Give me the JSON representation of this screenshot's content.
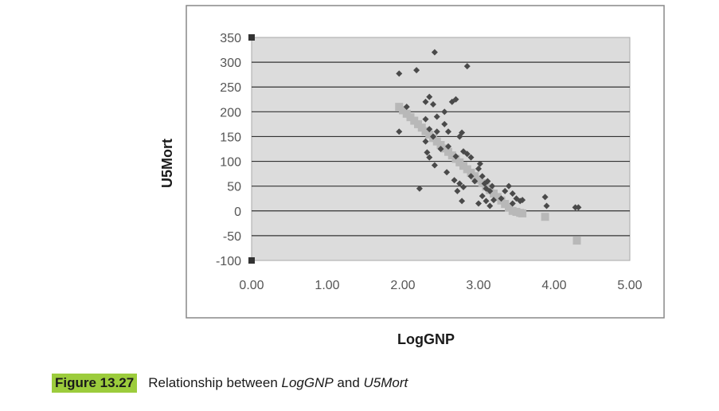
{
  "chart_data": {
    "type": "scatter",
    "xlabel": "LogGNP",
    "ylabel": "U5Mort",
    "xlim": [
      0,
      5
    ],
    "ylim": [
      -100,
      350
    ],
    "x_ticks": [
      "0.00",
      "1.00",
      "2.00",
      "3.00",
      "4.00",
      "5.00"
    ],
    "y_ticks": [
      "350",
      "300",
      "250",
      "200",
      "150",
      "100",
      "50",
      "0",
      "-50",
      "-100"
    ],
    "grid": true,
    "legend": "none",
    "series": [
      {
        "marker": "diamond",
        "color": "#4a4a4a",
        "points": [
          [
            1.95,
            277
          ],
          [
            1.95,
            160
          ],
          [
            2.18,
            284
          ],
          [
            2.22,
            45
          ],
          [
            2.42,
            320
          ],
          [
            2.85,
            292
          ],
          [
            2.05,
            210
          ],
          [
            2.3,
            220
          ],
          [
            2.35,
            230
          ],
          [
            2.4,
            215
          ],
          [
            2.45,
            190
          ],
          [
            2.55,
            200
          ],
          [
            2.65,
            220
          ],
          [
            2.7,
            225
          ],
          [
            2.3,
            185
          ],
          [
            2.35,
            165
          ],
          [
            2.4,
            150
          ],
          [
            2.45,
            160
          ],
          [
            2.55,
            175
          ],
          [
            2.6,
            160
          ],
          [
            2.75,
            150
          ],
          [
            2.78,
            158
          ],
          [
            2.3,
            140
          ],
          [
            2.32,
            118
          ],
          [
            2.35,
            108
          ],
          [
            2.42,
            92
          ],
          [
            2.5,
            125
          ],
          [
            2.6,
            130
          ],
          [
            2.7,
            110
          ],
          [
            2.8,
            120
          ],
          [
            2.85,
            115
          ],
          [
            2.9,
            108
          ],
          [
            2.58,
            78
          ],
          [
            2.68,
            62
          ],
          [
            2.75,
            55
          ],
          [
            2.8,
            48
          ],
          [
            2.72,
            40
          ],
          [
            2.78,
            20
          ],
          [
            2.9,
            70
          ],
          [
            2.95,
            60
          ],
          [
            3.0,
            85
          ],
          [
            3.02,
            95
          ],
          [
            3.05,
            70
          ],
          [
            3.08,
            55
          ],
          [
            3.1,
            45
          ],
          [
            3.12,
            60
          ],
          [
            3.15,
            40
          ],
          [
            3.18,
            50
          ],
          [
            3.05,
            30
          ],
          [
            3.1,
            20
          ],
          [
            3.15,
            10
          ],
          [
            3.0,
            15
          ],
          [
            3.2,
            22
          ],
          [
            3.3,
            25
          ],
          [
            3.35,
            40
          ],
          [
            3.4,
            50
          ],
          [
            3.45,
            35
          ],
          [
            3.5,
            25
          ],
          [
            3.45,
            15
          ],
          [
            3.55,
            20
          ],
          [
            3.58,
            22
          ],
          [
            3.88,
            28
          ],
          [
            3.9,
            10
          ],
          [
            4.28,
            7
          ],
          [
            4.32,
            7
          ]
        ]
      },
      {
        "marker": "square",
        "color": "#b8b8b8",
        "points": [
          [
            1.95,
            210
          ],
          [
            2.0,
            203
          ],
          [
            2.05,
            196
          ],
          [
            2.1,
            189
          ],
          [
            2.15,
            182
          ],
          [
            2.2,
            175
          ],
          [
            2.25,
            168
          ],
          [
            2.3,
            161
          ],
          [
            2.35,
            154
          ],
          [
            2.4,
            147
          ],
          [
            2.45,
            140
          ],
          [
            2.5,
            133
          ],
          [
            2.55,
            126
          ],
          [
            2.6,
            119
          ],
          [
            2.65,
            112
          ],
          [
            2.7,
            105
          ],
          [
            2.75,
            98
          ],
          [
            2.8,
            91
          ],
          [
            2.85,
            84
          ],
          [
            2.9,
            77
          ],
          [
            2.95,
            70
          ],
          [
            3.0,
            63
          ],
          [
            3.05,
            56
          ],
          [
            3.1,
            49
          ],
          [
            3.15,
            42
          ],
          [
            3.2,
            35
          ],
          [
            3.25,
            28
          ],
          [
            3.3,
            21
          ],
          [
            3.35,
            14
          ],
          [
            3.4,
            7
          ],
          [
            3.45,
            0
          ],
          [
            3.5,
            -2
          ],
          [
            3.55,
            -4
          ],
          [
            3.58,
            -5
          ],
          [
            3.88,
            -12
          ],
          [
            4.3,
            -60
          ]
        ]
      }
    ]
  },
  "caption": {
    "label": "Figure 13.27",
    "text_before": "Relationship between ",
    "var1": "LogGNP",
    "text_middle": " and ",
    "var2": "U5Mort"
  }
}
